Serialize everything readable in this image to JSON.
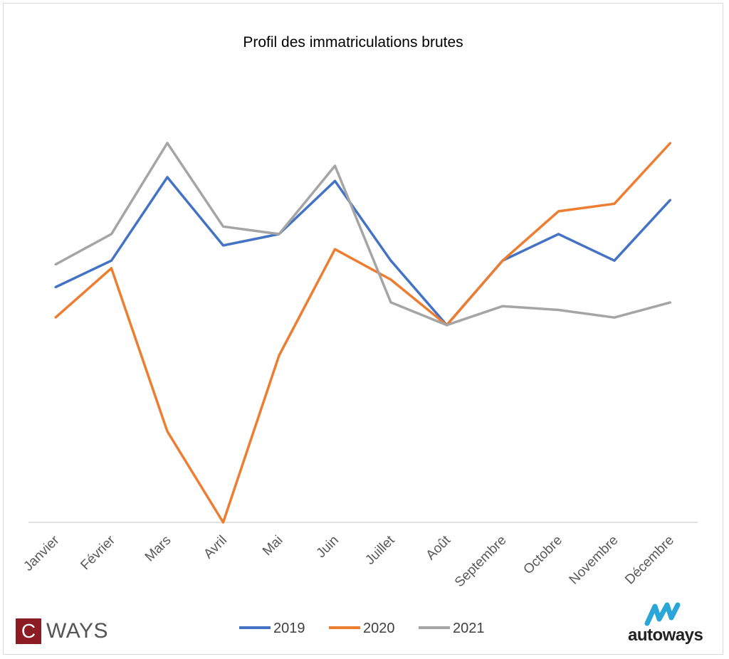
{
  "chart_data": {
    "type": "line",
    "title": "Profil des immatriculations brutes",
    "categories": [
      "Janvier",
      "Février",
      "Mars",
      "Avril",
      "Mai",
      "Juin",
      "Juillet",
      "Août",
      "Septembre",
      "Octobre",
      "Novembre",
      "Décembre"
    ],
    "series": [
      {
        "name": "2019",
        "color": "#4472c4",
        "values": [
          62,
          69,
          91,
          73,
          76,
          90,
          69,
          52,
          69,
          76,
          69,
          85
        ]
      },
      {
        "name": "2020",
        "color": "#ed7d31",
        "values": [
          54,
          67,
          24,
          0,
          44,
          72,
          64,
          52,
          69,
          82,
          84,
          100
        ]
      },
      {
        "name": "2021",
        "color": "#a5a5a5",
        "values": [
          68,
          76,
          100,
          78,
          76,
          94,
          58,
          52,
          57,
          56,
          54,
          58
        ]
      }
    ],
    "ylim": [
      0,
      100
    ],
    "y_axis_labels_shown": false,
    "grid": false,
    "legend_position": "bottom"
  },
  "branding": {
    "left_logo_letter": "C",
    "left_logo_text": "WAYS",
    "left_logo_color": "#8c1c24",
    "right_logo_text": "autoways",
    "right_logo_color": "#2aa6d9"
  }
}
